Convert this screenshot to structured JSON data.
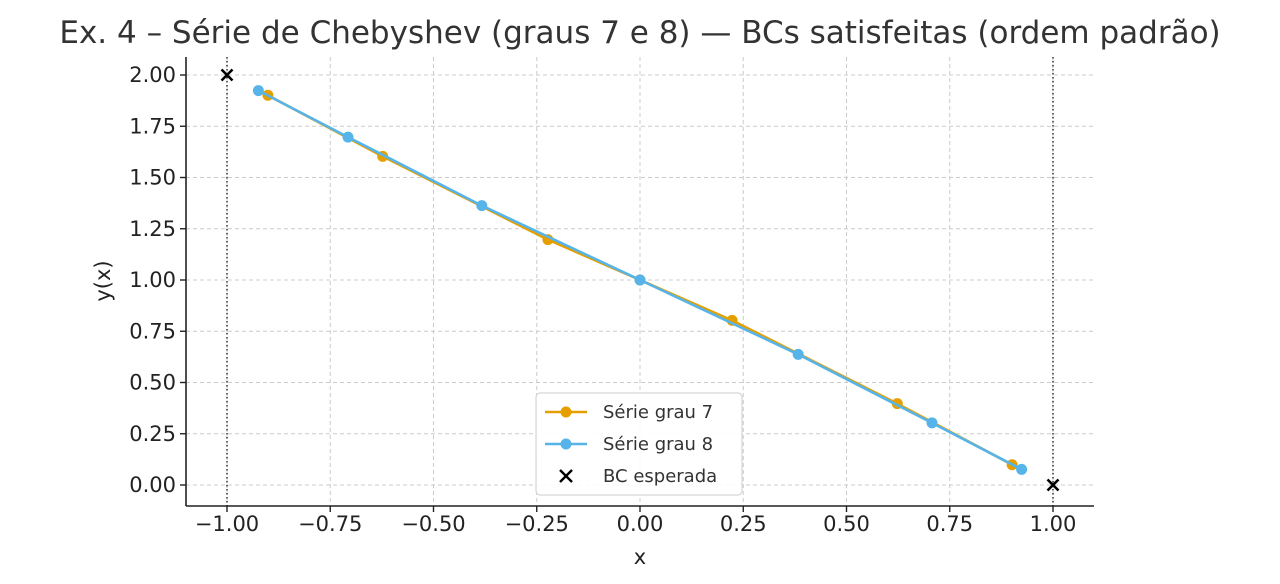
{
  "chart_data": {
    "type": "line",
    "title": "Ex. 4 – Série de Chebyshev (graus 7 e 8) — BCs satisfeitas (ordem padrão)",
    "xlabel": "x",
    "ylabel": "y(x)",
    "xlim": [
      -1.1,
      1.1
    ],
    "ylim": [
      -0.1,
      2.1
    ],
    "xticks": [
      -1.0,
      -0.75,
      -0.5,
      -0.25,
      0.0,
      0.25,
      0.5,
      0.75,
      1.0
    ],
    "xtick_labels": [
      "−1.00",
      "−0.75",
      "−0.50",
      "−0.25",
      "0.00",
      "0.25",
      "0.50",
      "0.75",
      "1.00"
    ],
    "yticks": [
      0.0,
      0.25,
      0.5,
      0.75,
      1.0,
      1.25,
      1.5,
      1.75,
      2.0
    ],
    "ytick_labels": [
      "0.00",
      "0.25",
      "0.50",
      "0.75",
      "1.00",
      "1.25",
      "1.50",
      "1.75",
      "2.00"
    ],
    "grid": true,
    "legend_position": "lower-center",
    "vlines": [
      -1.0,
      1.0
    ],
    "series": [
      {
        "name": "Série grau 7",
        "color": "#E69F00",
        "marker": "circle",
        "x": [
          -0.901,
          -0.623,
          -0.223,
          0.0,
          0.223,
          0.623,
          0.901
        ],
        "y": [
          1.901,
          1.603,
          1.197,
          1.0,
          0.803,
          0.397,
          0.099
        ]
      },
      {
        "name": "Série grau 8",
        "color": "#56B4E9",
        "marker": "circle",
        "x": [
          -0.924,
          -0.707,
          -0.383,
          0.0,
          0.383,
          0.707,
          0.924
        ],
        "y": [
          1.924,
          1.697,
          1.363,
          1.0,
          0.637,
          0.303,
          0.076
        ]
      }
    ],
    "boundary_conditions": {
      "name": "BC esperada",
      "marker": "x",
      "color": "#000000",
      "x": [
        -1.0,
        1.0
      ],
      "y": [
        2.0,
        0.0
      ]
    }
  }
}
